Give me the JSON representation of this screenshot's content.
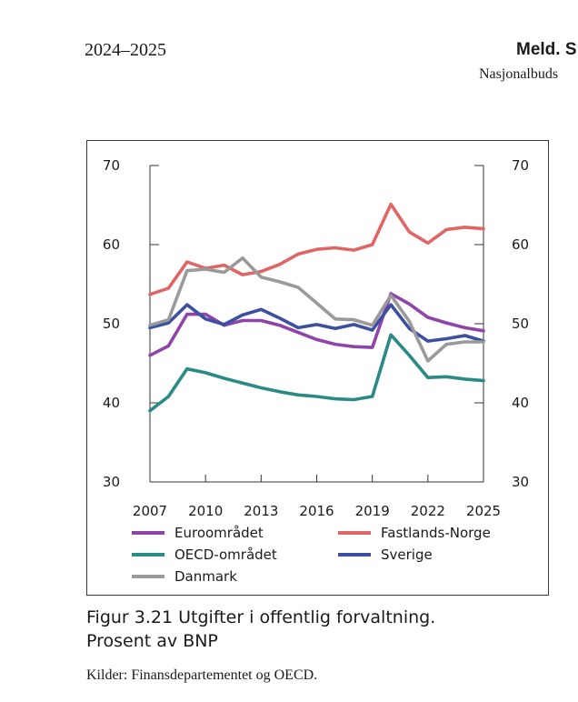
{
  "header": {
    "left": "2024–2025",
    "right": "Meld. S",
    "sub": "Nasjonalbuds"
  },
  "caption": {
    "line1": "Figur 3.21  Utgifter i offentlig forvaltning.",
    "line2": "Prosent av BNP"
  },
  "source": "Kilder: Finansdepartementet og OECD.",
  "chart_data": {
    "type": "line",
    "title": "",
    "xlabel": "",
    "ylabel": "",
    "ylim": [
      30,
      70
    ],
    "yticks": [
      30,
      40,
      50,
      60,
      70
    ],
    "xticks": [
      2007,
      2010,
      2013,
      2016,
      2019,
      2022,
      2025
    ],
    "xlim": [
      2007,
      2025
    ],
    "dual_y_axis": true,
    "grid": false,
    "legend_position": "bottom",
    "x": [
      2007,
      2008,
      2009,
      2010,
      2011,
      2012,
      2013,
      2014,
      2015,
      2016,
      2017,
      2018,
      2019,
      2020,
      2021,
      2022,
      2023,
      2024,
      2025
    ],
    "series": [
      {
        "name": "Euroområdet",
        "color": "#8e44a8",
        "values": [
          46.0,
          47.2,
          51.2,
          51.2,
          49.8,
          50.4,
          50.4,
          49.8,
          48.9,
          48.0,
          47.4,
          47.1,
          47.0,
          53.8,
          52.5,
          50.8,
          50.1,
          49.5,
          49.1
        ]
      },
      {
        "name": "Fastlands-Norge",
        "color": "#e06565",
        "values": [
          53.7,
          54.5,
          57.8,
          57.0,
          57.4,
          56.2,
          56.6,
          57.5,
          58.8,
          59.4,
          59.6,
          59.3,
          60.0,
          65.1,
          61.6,
          60.2,
          61.9,
          62.2,
          62.0
        ]
      },
      {
        "name": "OECD-området",
        "color": "#2a8a85",
        "values": [
          39.0,
          40.8,
          44.3,
          43.8,
          43.1,
          42.5,
          41.9,
          41.4,
          41.0,
          40.8,
          40.5,
          40.4,
          40.8,
          48.6,
          46.0,
          43.2,
          43.3,
          43.0,
          42.8
        ]
      },
      {
        "name": "Sverige",
        "color": "#3c4fa0",
        "values": [
          49.5,
          50.1,
          52.4,
          50.6,
          49.9,
          51.1,
          51.8,
          50.7,
          49.5,
          49.9,
          49.4,
          49.9,
          49.2,
          52.4,
          49.4,
          47.8,
          48.1,
          48.5,
          47.8
        ]
      },
      {
        "name": "Danmark",
        "color": "#9a9a9a",
        "values": [
          49.8,
          50.5,
          56.7,
          56.9,
          56.5,
          58.3,
          55.9,
          55.3,
          54.6,
          52.6,
          50.6,
          50.5,
          49.8,
          53.6,
          50.3,
          45.3,
          47.4,
          47.7,
          47.7
        ]
      }
    ]
  }
}
